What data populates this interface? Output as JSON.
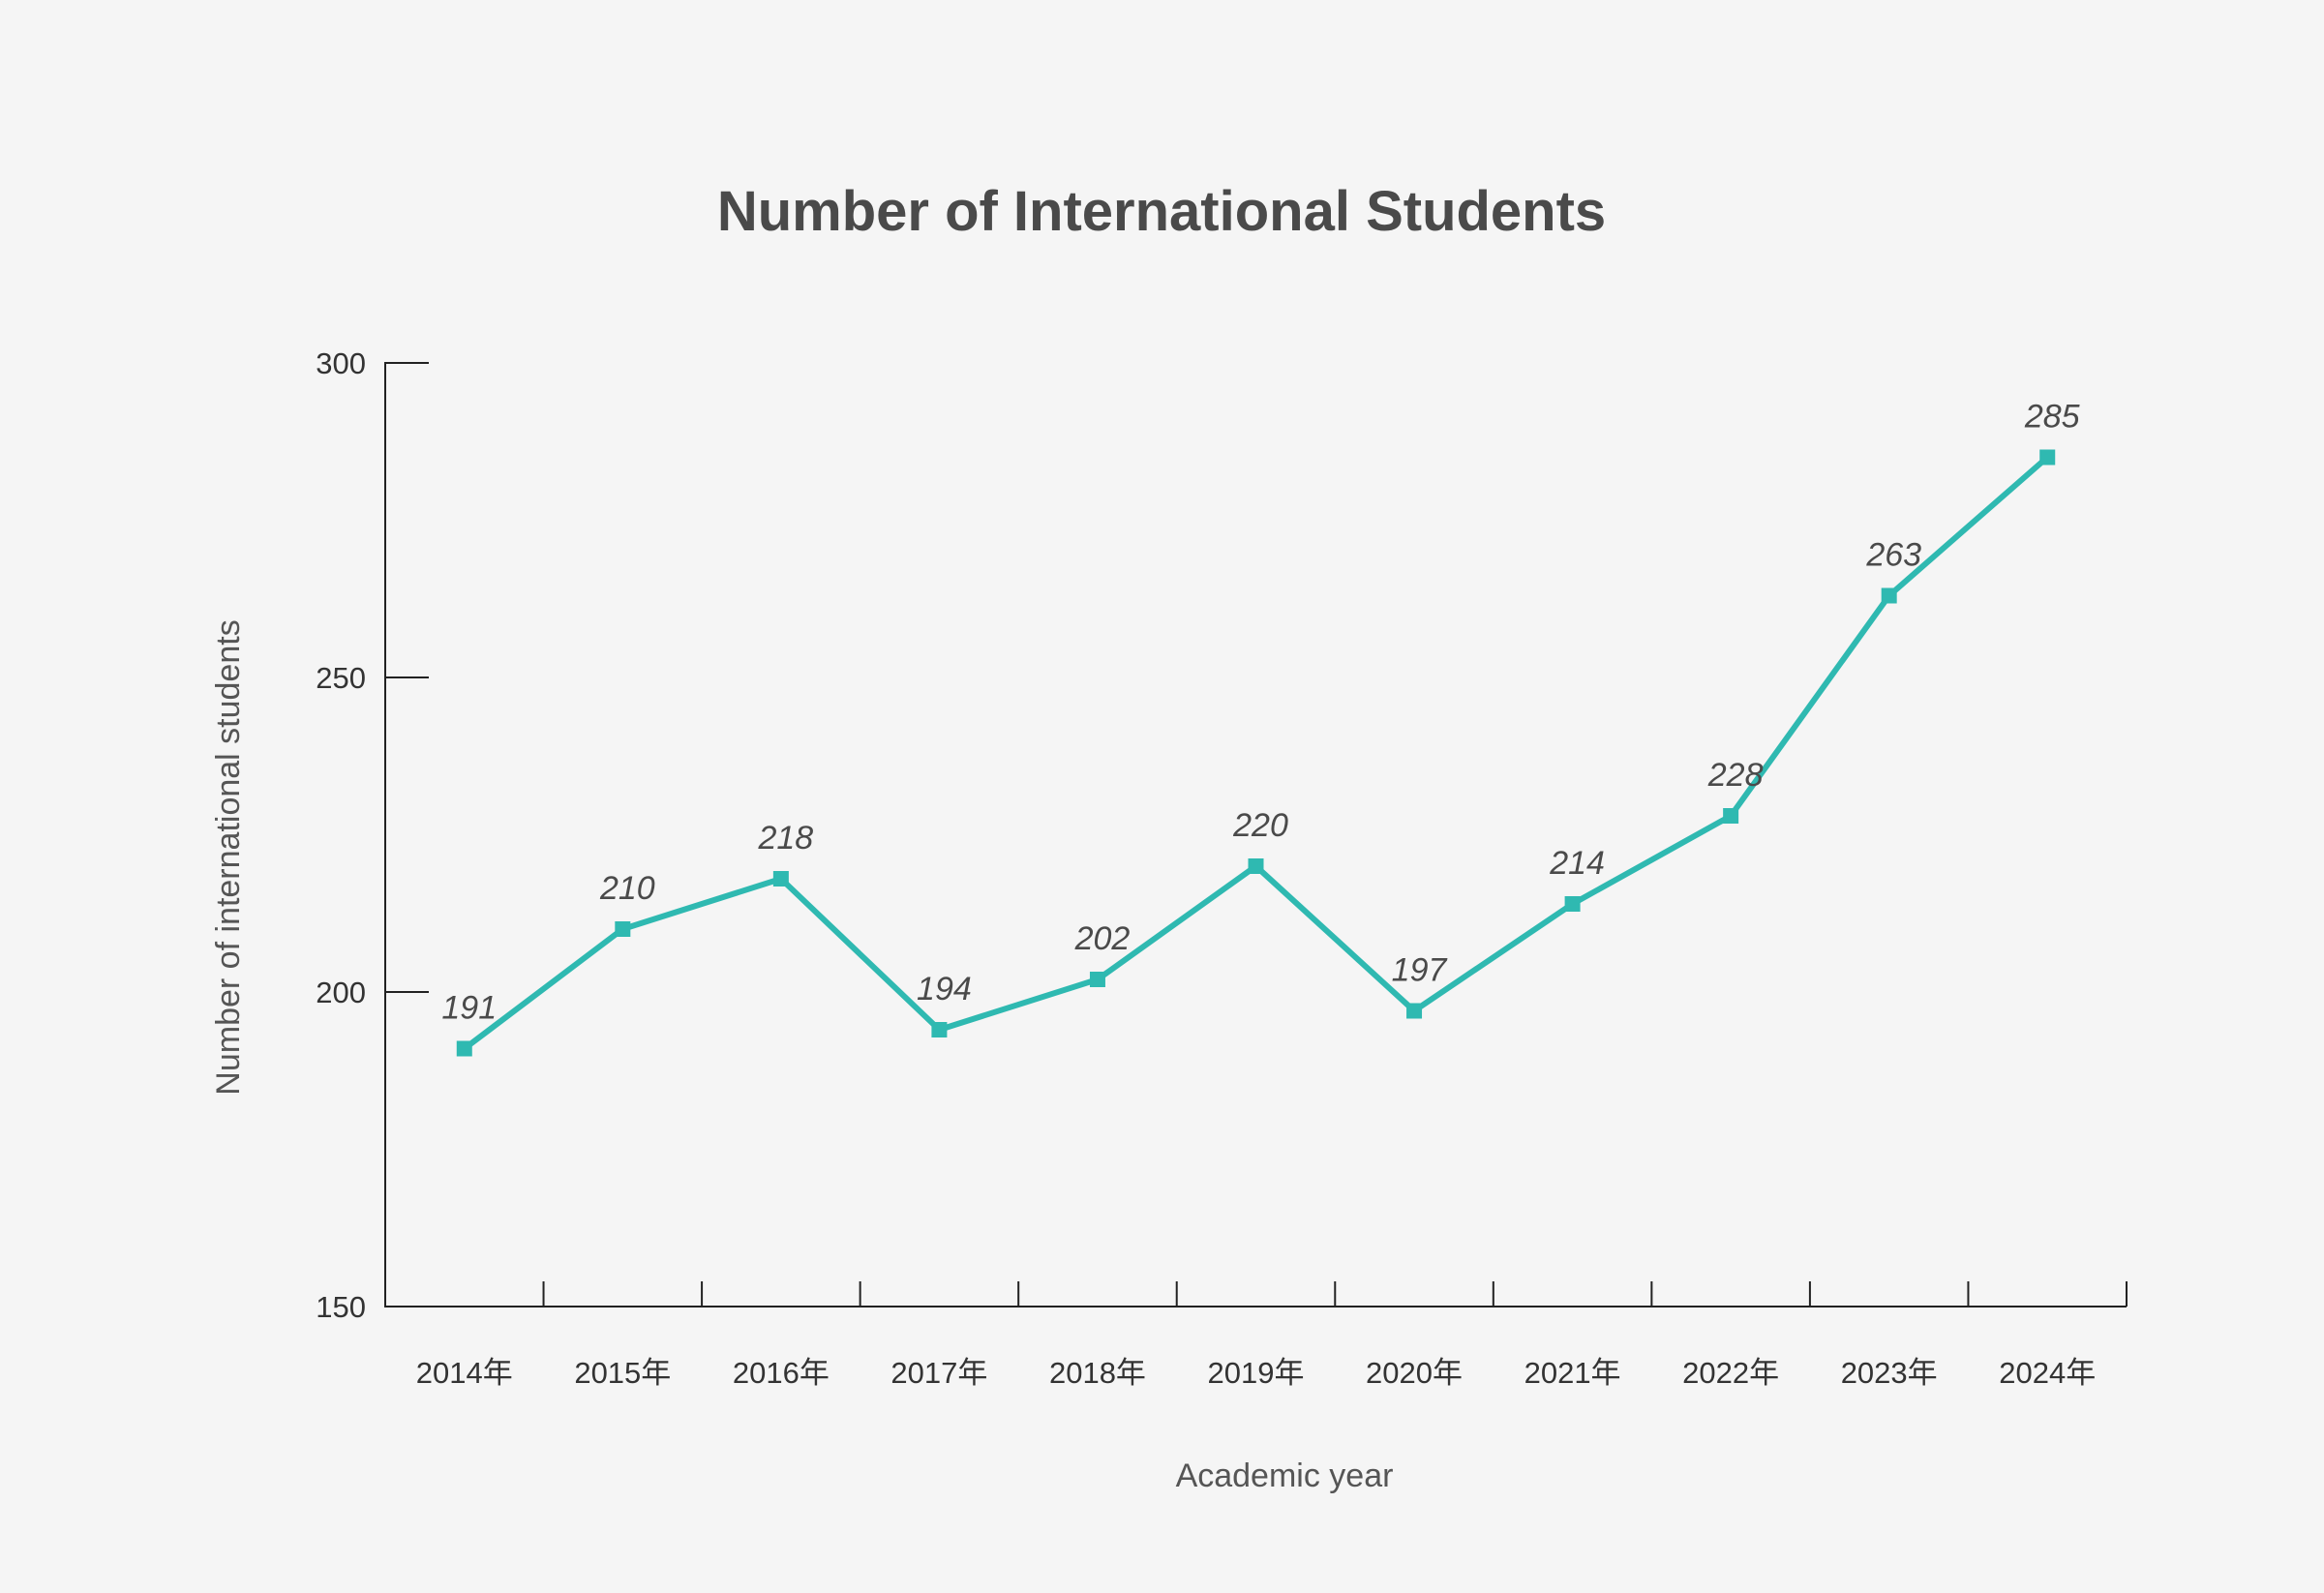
{
  "chart_data": {
    "type": "line",
    "title": "Number of International Students",
    "xlabel": "Academic year",
    "ylabel": "Number of international students",
    "categories": [
      "2014年",
      "2015年",
      "2016年",
      "2017年",
      "2018年",
      "2019年",
      "2020年",
      "2021年",
      "2022年",
      "2023年",
      "2024年"
    ],
    "series": [
      {
        "values": [
          191,
          210,
          218,
          194,
          202,
          220,
          197,
          214,
          228,
          263,
          285
        ],
        "color": "#2fb9b1",
        "marker": "square"
      }
    ],
    "ylim": [
      150,
      300
    ],
    "yticks": [
      150,
      200,
      250,
      300
    ],
    "data_labels": true,
    "grid": false,
    "legend": "none"
  }
}
